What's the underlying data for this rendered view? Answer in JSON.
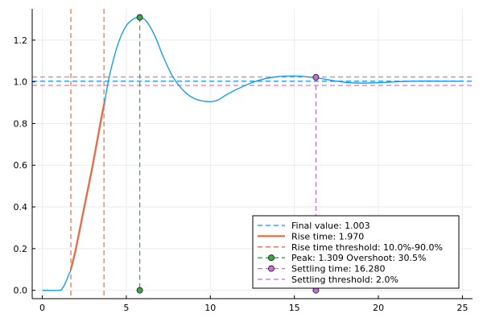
{
  "chart_data": {
    "type": "line",
    "title": "",
    "xlabel": "",
    "ylabel": "",
    "xlim": [
      -0.6,
      25.6
    ],
    "ylim": [
      -0.04,
      1.35
    ],
    "grid": true,
    "legend_position": "bottom-right",
    "xticks": [
      0,
      5,
      10,
      15,
      20,
      25
    ],
    "xtick_labels": [
      "0",
      "5",
      "10",
      "15",
      "20",
      "25"
    ],
    "yticks": [
      0.0,
      0.2,
      0.4,
      0.6,
      0.8,
      1.0,
      1.2
    ],
    "ytick_labels": [
      "0.0",
      "0.2",
      "0.4",
      "0.6",
      "0.8",
      "1.0",
      "1.2"
    ],
    "response": {
      "x": [
        0,
        1,
        1.2,
        1.4,
        1.6,
        1.7,
        2,
        2.5,
        3,
        3.5,
        3.7,
        4,
        4.5,
        5,
        5.5,
        5.8,
        6.2,
        6.7,
        7.2,
        7.8,
        8.5,
        9.2,
        10,
        10.5,
        11,
        12,
        13,
        14,
        15,
        15.5,
        16,
        16.3,
        17,
        18,
        19,
        20,
        21,
        22,
        23,
        24,
        25
      ],
      "y": [
        0,
        0,
        0.01,
        0.04,
        0.08,
        0.1,
        0.2,
        0.4,
        0.6,
        0.82,
        0.9,
        1.03,
        1.18,
        1.27,
        1.305,
        1.309,
        1.29,
        1.22,
        1.12,
        1.02,
        0.95,
        0.915,
        0.905,
        0.915,
        0.94,
        0.98,
        1.01,
        1.025,
        1.028,
        1.026,
        1.022,
        1.02,
        1.01,
        0.998,
        0.994,
        0.996,
        1.0,
        1.003,
        1.004,
        1.003,
        1.003
      ]
    },
    "rise_segment": {
      "x": [
        1.7,
        2,
        2.5,
        3,
        3.5,
        3.7
      ],
      "y": [
        0.1,
        0.2,
        0.4,
        0.6,
        0.82,
        0.9
      ]
    },
    "final_value": 1.003,
    "rise_threshold_x": [
      1.7,
      3.67
    ],
    "peak": {
      "x": 5.8,
      "y": 1.309
    },
    "settling": {
      "x": 16.28,
      "y": 1.022,
      "band": [
        0.983,
        1.023
      ]
    },
    "colors": {
      "response": "#009AF9",
      "rise": "#E26F46",
      "peak": "#3DA44D",
      "settling": "#C271D2",
      "axis": "#000000",
      "grid": "#EBEBEB"
    },
    "legend": [
      {
        "label": "Final value: 1.003",
        "style": "dashed",
        "color": "#009AF9"
      },
      {
        "label": "Rise time: 1.970",
        "style": "solid",
        "color": "#E26F46"
      },
      {
        "label": "Rise time threshold: 10.0%-90.0%",
        "style": "dashed",
        "color": "#E26F46"
      },
      {
        "label": "Peak: 1.309 Overshoot: 30.5%",
        "style": "marker-dashed",
        "color": "#3DA44D"
      },
      {
        "label": "Settling time: 16.280",
        "style": "marker-dashed",
        "color": "#C271D2"
      },
      {
        "label": "Settling threshold: 2.0%",
        "style": "dashed",
        "color": "#C271D2"
      }
    ]
  }
}
